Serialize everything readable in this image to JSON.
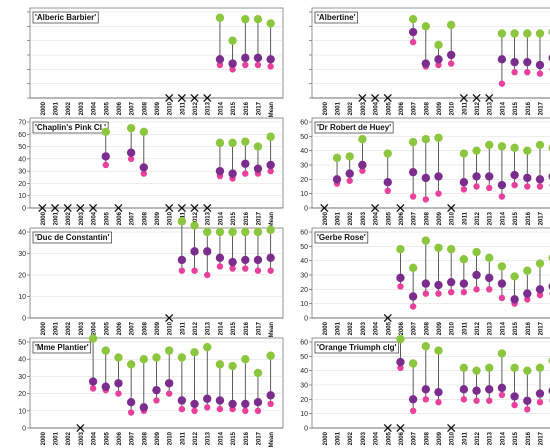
{
  "colors": {
    "top": "#8cc63f",
    "mid": "#7b2d8e",
    "low": "#e8409b",
    "stem": "#333333",
    "cross": "#111111",
    "axis": "#666666",
    "grid": "#d9d9d9"
  },
  "chart_data": [
    {
      "type": "scatter",
      "title": "'Alberic Barbier'",
      "categories": [
        "2000",
        "2001",
        "2002",
        "2003",
        "2004",
        "2005",
        "2006",
        "2007",
        "2008",
        "2009",
        "2010",
        "2011",
        "2012",
        "2013",
        "2014",
        "2015",
        "2016",
        "2017",
        "Mean"
      ],
      "ylim": [
        0,
        60
      ],
      "yticks": [
        0,
        10,
        20,
        30,
        40,
        50,
        60
      ],
      "show_yticks": false,
      "missing": [
        "2010",
        "2011",
        "2012",
        "2013"
      ],
      "series": [
        {
          "values": [
            null,
            null,
            null,
            null,
            null,
            null,
            null,
            null,
            null,
            null,
            null,
            null,
            null,
            null,
            56,
            40,
            55,
            55,
            52
          ]
        },
        {
          "values": [
            null,
            null,
            null,
            null,
            null,
            null,
            null,
            null,
            null,
            null,
            null,
            null,
            null,
            null,
            27,
            24,
            28,
            28,
            27
          ]
        },
        {
          "values": [
            null,
            null,
            null,
            null,
            null,
            null,
            null,
            null,
            null,
            null,
            null,
            null,
            null,
            null,
            23,
            20,
            23,
            23,
            22
          ]
        }
      ]
    },
    {
      "type": "scatter",
      "title": "'Albertine'",
      "categories": [
        "2000",
        "2001",
        "2002",
        "2003",
        "2004",
        "2005",
        "2006",
        "2007",
        "2008",
        "2009",
        "2010",
        "2011",
        "2012",
        "2013",
        "2014",
        "2015",
        "2016",
        "2017",
        "Mean"
      ],
      "ylim": [
        0,
        60
      ],
      "yticks": [
        0,
        10,
        20,
        30,
        40,
        50,
        60
      ],
      "show_yticks": false,
      "missing": [
        "2003",
        "2004",
        "2005",
        "2011",
        "2012",
        "2013"
      ],
      "series": [
        {
          "values": [
            null,
            null,
            null,
            null,
            null,
            null,
            null,
            55,
            50,
            37,
            51,
            null,
            null,
            null,
            45,
            45,
            45,
            45,
            46
          ]
        },
        {
          "values": [
            null,
            null,
            null,
            null,
            null,
            null,
            null,
            46,
            24,
            27,
            30,
            null,
            null,
            null,
            27,
            25,
            25,
            23,
            28
          ]
        },
        {
          "values": [
            null,
            null,
            null,
            null,
            null,
            null,
            null,
            39,
            22,
            23,
            24,
            null,
            null,
            null,
            10,
            18,
            18,
            17,
            20
          ]
        }
      ]
    },
    {
      "type": "scatter",
      "title": "'Chaplin's Pink Cl.'",
      "categories": [
        "2000",
        "2001",
        "2002",
        "2003",
        "2004",
        "2005",
        "2006",
        "2007",
        "2008",
        "2009",
        "2010",
        "2011",
        "2012",
        "2013",
        "2014",
        "2015",
        "2016",
        "2017",
        "Mean"
      ],
      "ylim": [
        0,
        70
      ],
      "yticks": [
        0,
        10,
        20,
        30,
        40,
        50,
        60,
        70
      ],
      "show_yticks": true,
      "missing": [
        "2000",
        "2001",
        "2002",
        "2003",
        "2004",
        "2006",
        "2010",
        "2011",
        "2012",
        "2013"
      ],
      "series": [
        {
          "values": [
            null,
            null,
            null,
            null,
            null,
            62,
            null,
            65,
            62,
            null,
            null,
            null,
            null,
            null,
            53,
            53,
            54,
            50,
            58
          ]
        },
        {
          "values": [
            null,
            null,
            null,
            null,
            null,
            42,
            null,
            45,
            33,
            null,
            null,
            null,
            null,
            null,
            30,
            28,
            36,
            32,
            35
          ]
        },
        {
          "values": [
            null,
            null,
            null,
            null,
            null,
            35,
            null,
            40,
            28,
            null,
            null,
            null,
            null,
            null,
            26,
            24,
            28,
            28,
            30
          ]
        }
      ]
    },
    {
      "type": "scatter",
      "title": "'Dr Robert de Huey'",
      "categories": [
        "2000",
        "2001",
        "2002",
        "2003",
        "2004",
        "2005",
        "2006",
        "2007",
        "2008",
        "2009",
        "2010",
        "2011",
        "2012",
        "2013",
        "2014",
        "2015",
        "2016",
        "2017",
        "Mean"
      ],
      "ylim": [
        0,
        60
      ],
      "yticks": [
        0,
        10,
        20,
        30,
        40,
        50,
        60
      ],
      "show_yticks": true,
      "missing": [
        "2000",
        "2004",
        "2006",
        "2010"
      ],
      "series": [
        {
          "values": [
            null,
            35,
            36,
            48,
            null,
            38,
            null,
            46,
            48,
            49,
            null,
            38,
            40,
            44,
            43,
            42,
            40,
            44,
            42
          ]
        },
        {
          "values": [
            null,
            20,
            24,
            30,
            null,
            18,
            null,
            25,
            21,
            22,
            null,
            18,
            22,
            22,
            16,
            23,
            21,
            20,
            22
          ]
        },
        {
          "values": [
            null,
            17,
            19,
            26,
            null,
            12,
            null,
            8,
            6,
            10,
            null,
            13,
            15,
            14,
            8,
            16,
            15,
            15,
            16
          ]
        }
      ]
    },
    {
      "type": "scatter",
      "title": "'Duc de Constantin'",
      "categories": [
        "2000",
        "2001",
        "2002",
        "2003",
        "2004",
        "2005",
        "2006",
        "2007",
        "2008",
        "2009",
        "2010",
        "2011",
        "2012",
        "2013",
        "2014",
        "2015",
        "2016",
        "2017",
        "Mean"
      ],
      "ylim": [
        0,
        40
      ],
      "yticks": [
        0,
        10,
        20,
        30,
        40
      ],
      "show_yticks": true,
      "missing": [
        "2010"
      ],
      "series": [
        {
          "values": [
            null,
            null,
            null,
            null,
            null,
            null,
            null,
            null,
            null,
            null,
            null,
            45,
            43,
            40,
            40,
            40,
            40,
            40,
            41
          ]
        },
        {
          "values": [
            null,
            null,
            null,
            null,
            null,
            null,
            null,
            null,
            null,
            null,
            null,
            27,
            31,
            31,
            28,
            26,
            27,
            27,
            28
          ]
        },
        {
          "values": [
            null,
            null,
            null,
            null,
            null,
            null,
            null,
            null,
            null,
            null,
            null,
            22,
            22,
            20,
            24,
            23,
            23,
            22,
            22
          ]
        }
      ]
    },
    {
      "type": "scatter",
      "title": "'Gerbe Rose'",
      "categories": [
        "2000",
        "2001",
        "2002",
        "2003",
        "2004",
        "2005",
        "2006",
        "2007",
        "2008",
        "2009",
        "2010",
        "2011",
        "2012",
        "2013",
        "2014",
        "2015",
        "2016",
        "2017",
        "Mean"
      ],
      "ylim": [
        0,
        60
      ],
      "yticks": [
        0,
        10,
        20,
        30,
        40,
        50,
        60
      ],
      "show_yticks": true,
      "missing": [
        "2005"
      ],
      "series": [
        {
          "values": [
            null,
            null,
            null,
            null,
            null,
            null,
            48,
            35,
            54,
            49,
            48,
            41,
            46,
            42,
            36,
            29,
            33,
            38,
            42
          ]
        },
        {
          "values": [
            null,
            null,
            null,
            null,
            null,
            null,
            28,
            15,
            24,
            23,
            25,
            24,
            30,
            28,
            24,
            13,
            17,
            20,
            22
          ]
        },
        {
          "values": [
            null,
            null,
            null,
            null,
            null,
            null,
            22,
            8,
            17,
            17,
            18,
            18,
            20,
            20,
            14,
            10,
            13,
            16,
            17
          ]
        }
      ]
    },
    {
      "type": "scatter",
      "title": "'Mme Plantier'",
      "categories": [
        "2000",
        "2001",
        "2002",
        "2003",
        "2004",
        "2005",
        "2006",
        "2007",
        "2008",
        "2009",
        "2010",
        "2011",
        "2012",
        "2013",
        "2014",
        "2015",
        "2016",
        "2017",
        "Mean"
      ],
      "ylim": [
        0,
        50
      ],
      "yticks": [
        0,
        10,
        20,
        30,
        40,
        50
      ],
      "show_yticks": true,
      "missing": [
        "2003"
      ],
      "series": [
        {
          "values": [
            null,
            null,
            null,
            null,
            52,
            45,
            41,
            37,
            40,
            41,
            45,
            41,
            44,
            47,
            37,
            36,
            40,
            32,
            42
          ]
        },
        {
          "values": [
            null,
            null,
            null,
            null,
            27,
            24,
            26,
            15,
            12,
            22,
            26,
            16,
            14,
            17,
            16,
            14,
            14,
            15,
            19
          ]
        },
        {
          "values": [
            null,
            null,
            null,
            null,
            23,
            22,
            20,
            9,
            10,
            16,
            20,
            11,
            10,
            12,
            11,
            11,
            10,
            10,
            14
          ]
        }
      ]
    },
    {
      "type": "scatter",
      "title": "'Orange Triumph clg'",
      "categories": [
        "2000",
        "2001",
        "2002",
        "2003",
        "2004",
        "2005",
        "2006",
        "2007",
        "2008",
        "2009",
        "2010",
        "2011",
        "2012",
        "2013",
        "2014",
        "2015",
        "2016",
        "2017",
        "Mean"
      ],
      "ylim": [
        0,
        60
      ],
      "yticks": [
        0,
        10,
        20,
        30,
        40,
        50,
        60
      ],
      "show_yticks": true,
      "missing": [
        "2005",
        "2006",
        "2010"
      ],
      "series": [
        {
          "values": [
            null,
            null,
            null,
            null,
            null,
            null,
            62,
            45,
            57,
            54,
            null,
            42,
            40,
            42,
            52,
            42,
            40,
            42,
            47
          ]
        },
        {
          "values": [
            null,
            null,
            null,
            null,
            null,
            null,
            46,
            20,
            27,
            25,
            null,
            27,
            26,
            27,
            28,
            22,
            19,
            24,
            26
          ]
        },
        {
          "values": [
            null,
            null,
            null,
            null,
            null,
            null,
            42,
            12,
            20,
            18,
            null,
            20,
            19,
            19,
            23,
            16,
            13,
            18,
            19
          ]
        }
      ]
    }
  ]
}
